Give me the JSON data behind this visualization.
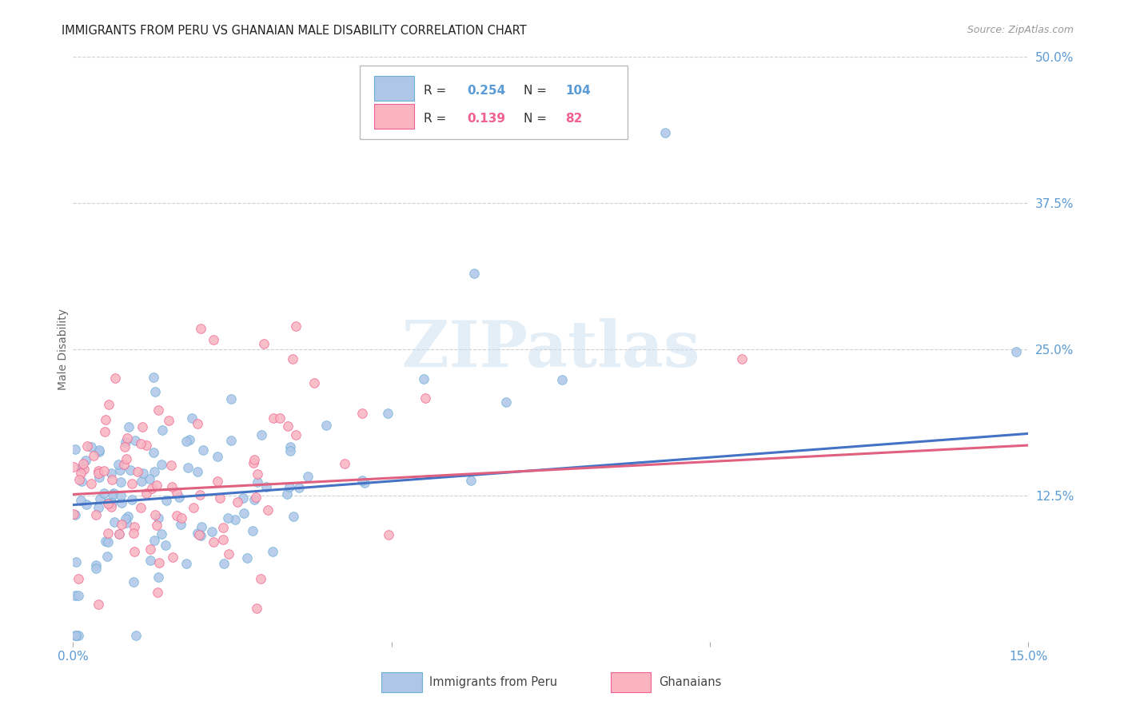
{
  "title": "IMMIGRANTS FROM PERU VS GHANAIAN MALE DISABILITY CORRELATION CHART",
  "source": "Source: ZipAtlas.com",
  "ylabel": "Male Disability",
  "xmin": 0.0,
  "xmax": 0.15,
  "ymin": 0.0,
  "ymax": 0.5,
  "blue_color": "#aec6e8",
  "blue_edge_color": "#6baed6",
  "pink_color": "#f9b4c0",
  "pink_edge_color": "#f06090",
  "blue_line_color": "#4472c4",
  "pink_line_color": "#e06080",
  "tick_color": "#5b9bd5",
  "watermark": "ZIPatlas",
  "blue_R": "0.254",
  "blue_N": "104",
  "pink_R": "0.139",
  "pink_N": "82",
  "blue_trend_y0": 0.117,
  "blue_trend_y1": 0.178,
  "pink_trend_y0": 0.126,
  "pink_trend_y1": 0.168
}
